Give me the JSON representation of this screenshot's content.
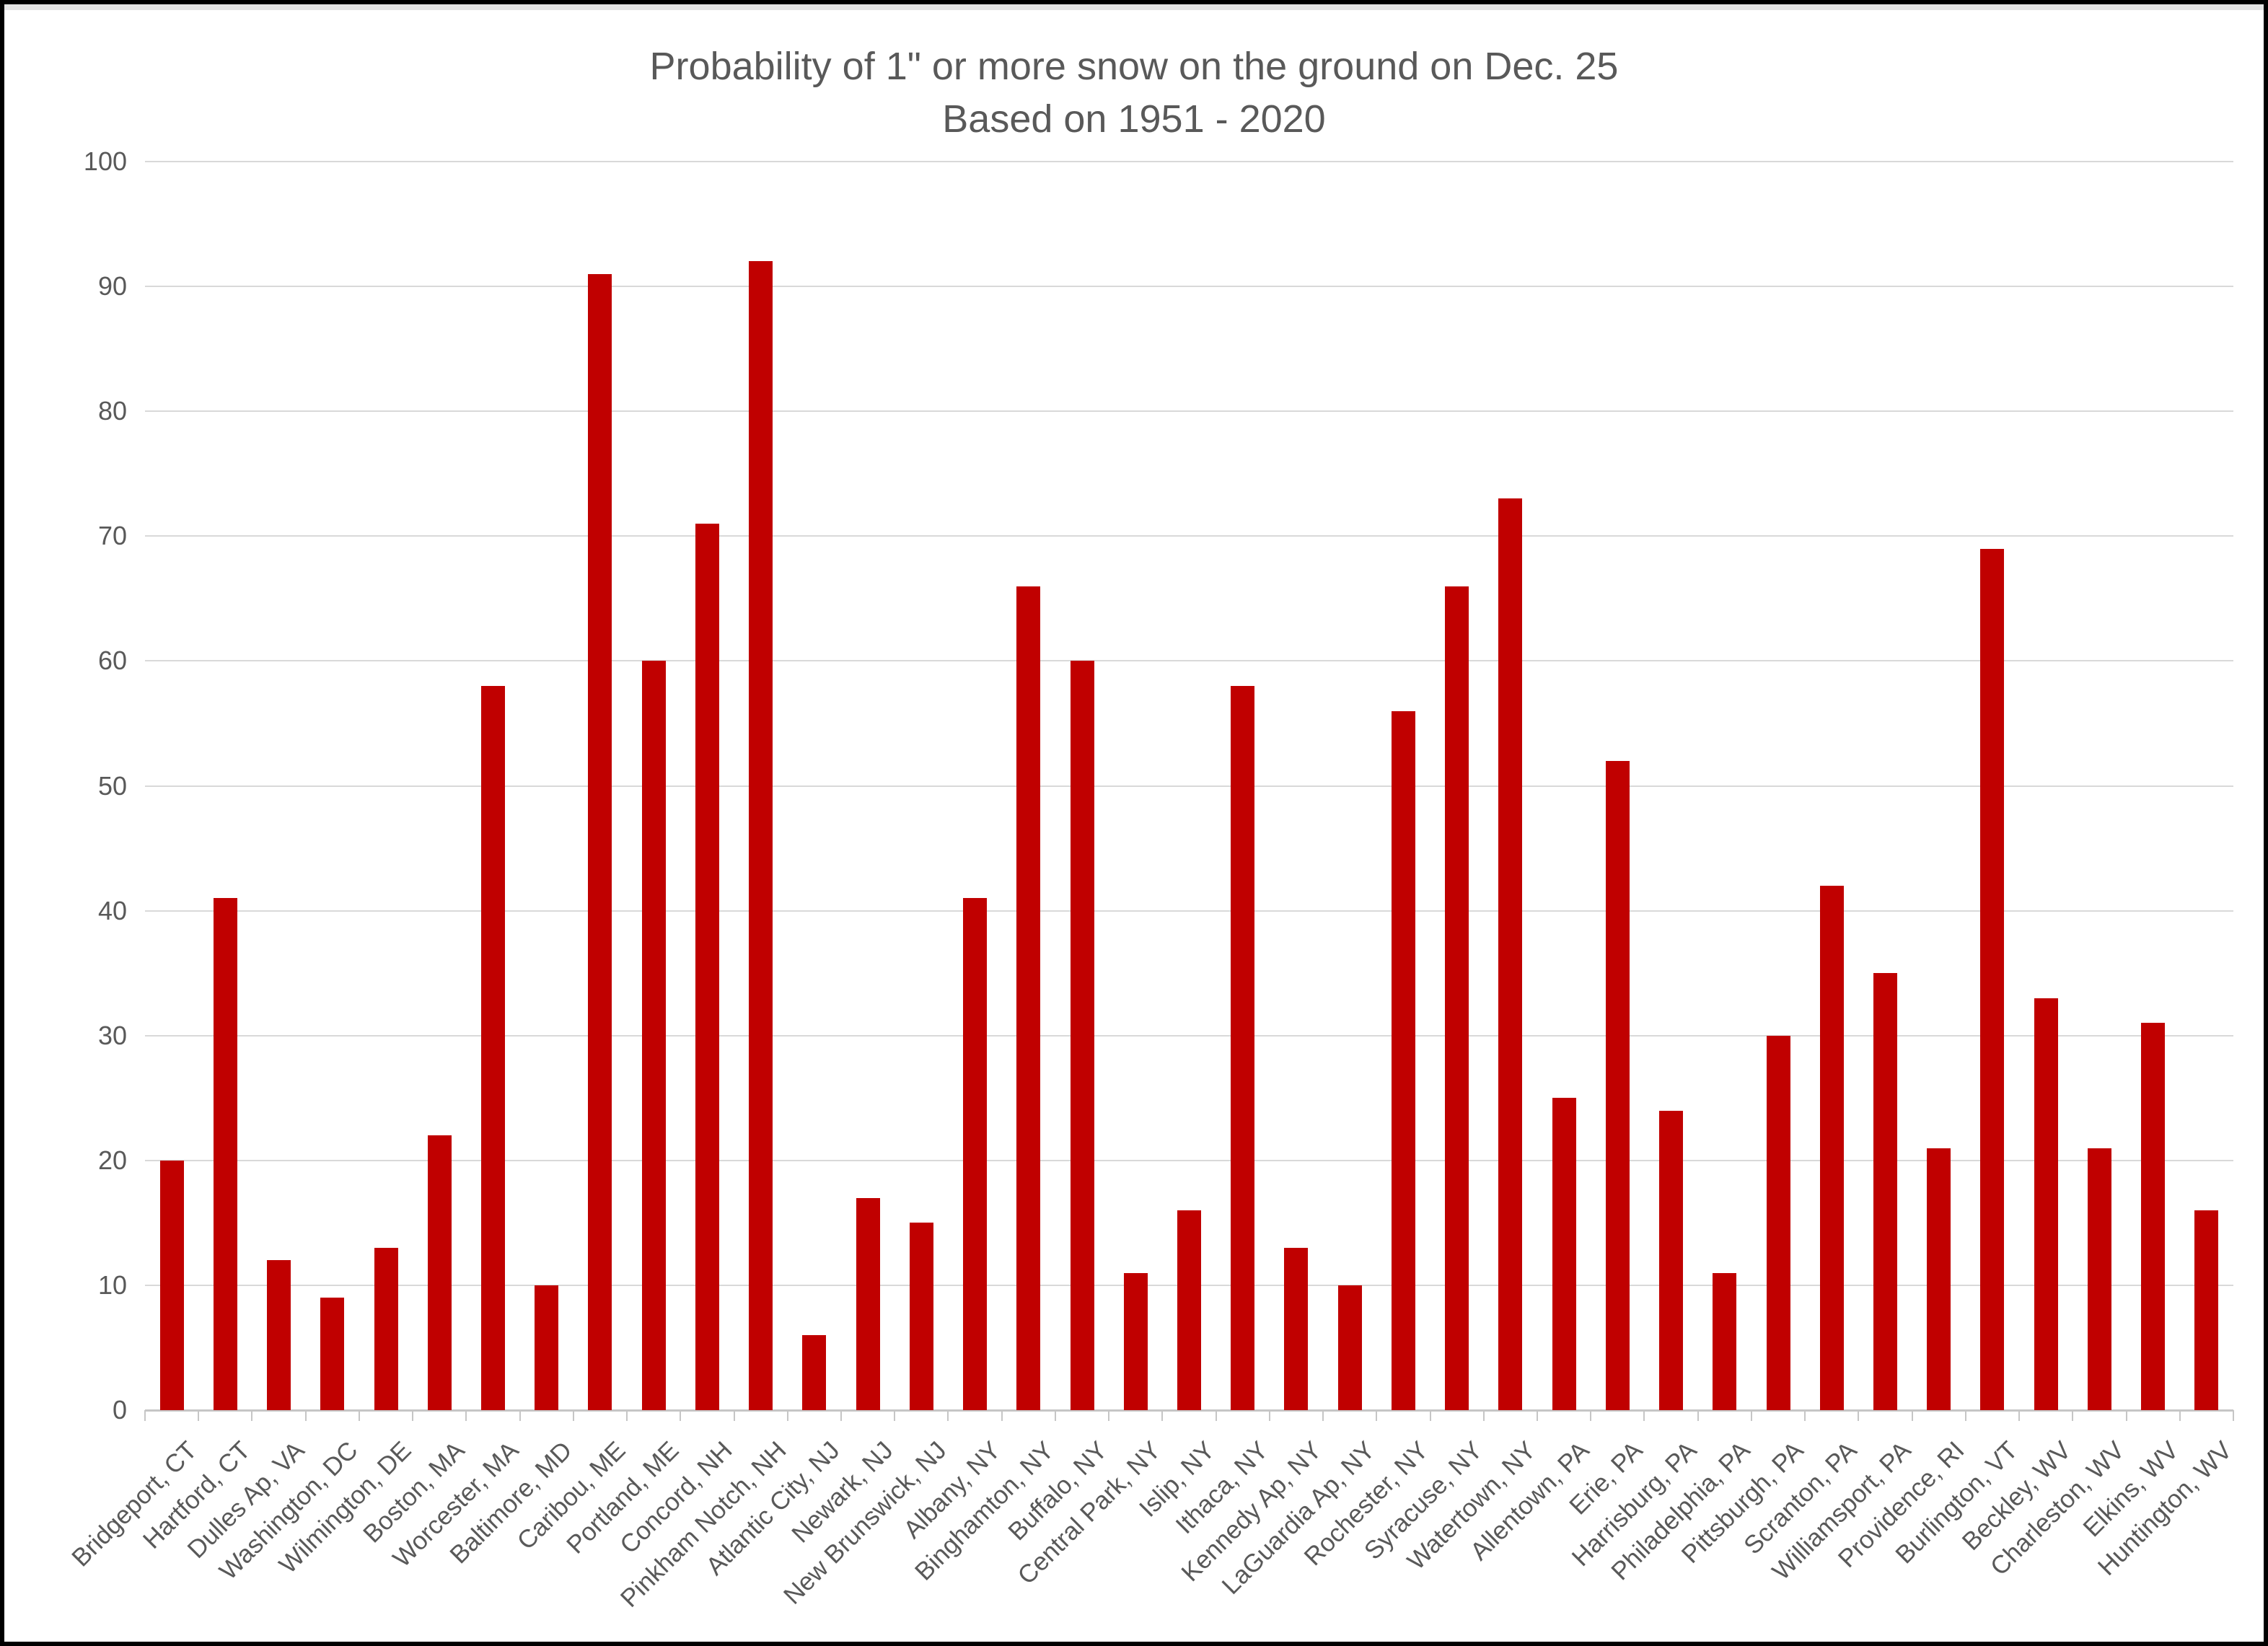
{
  "title": {
    "line1": "Probability of 1\" or more snow on the ground on Dec. 25",
    "line2": "Based on 1951 - 2020"
  },
  "chart_data": {
    "type": "bar",
    "title": "Probability of 1\" or more snow on the ground on Dec. 25",
    "subtitle": "Based on 1951 - 2020",
    "xlabel": "",
    "ylabel": "",
    "ylim": [
      0,
      100
    ],
    "yticks": [
      0,
      10,
      20,
      30,
      40,
      50,
      60,
      70,
      80,
      90,
      100
    ],
    "grid": true,
    "legend": "none",
    "bar_color": "#c00000",
    "text_color": "#595959",
    "gridline_color": "#d9d9d9",
    "axis_line_color": "#c6c6c6",
    "categories": [
      "Bridgeport, CT",
      "Hartford, CT",
      "Dulles Ap, VA",
      "Washington, DC",
      "Wilmington, DE",
      "Boston, MA",
      "Worcester, MA",
      "Baltimore, MD",
      "Caribou, ME",
      "Portland, ME",
      "Concord, NH",
      "Pinkham Notch, NH",
      "Atlantic City, NJ",
      "Newark, NJ",
      "New Brunswick, NJ",
      "Albany, NY",
      "Binghamton, NY",
      "Buffalo, NY",
      "Central Park, NY",
      "Islip, NY",
      "Ithaca, NY",
      "Kennedy Ap, NY",
      "LaGuardia Ap, NY",
      "Rochester, NY",
      "Syracuse, NY",
      "Watertown, NY",
      "Allentown, PA",
      "Erie, PA",
      "Harrisburg, PA",
      "Philadelphia, PA",
      "Pittsburgh, PA",
      "Scranton, PA",
      "Williamsport, PA",
      "Providence, RI",
      "Burlington, VT",
      "Beckley, WV",
      "Charleston, WV",
      "Elkins, WV",
      "Huntington, WV"
    ],
    "values": [
      20,
      41,
      12,
      9,
      13,
      22,
      58,
      10,
      91,
      60,
      71,
      92,
      6,
      17,
      15,
      41,
      66,
      60,
      11,
      16,
      58,
      13,
      10,
      56,
      66,
      73,
      25,
      52,
      24,
      11,
      30,
      42,
      35,
      21,
      69,
      33,
      21,
      31,
      16
    ]
  }
}
